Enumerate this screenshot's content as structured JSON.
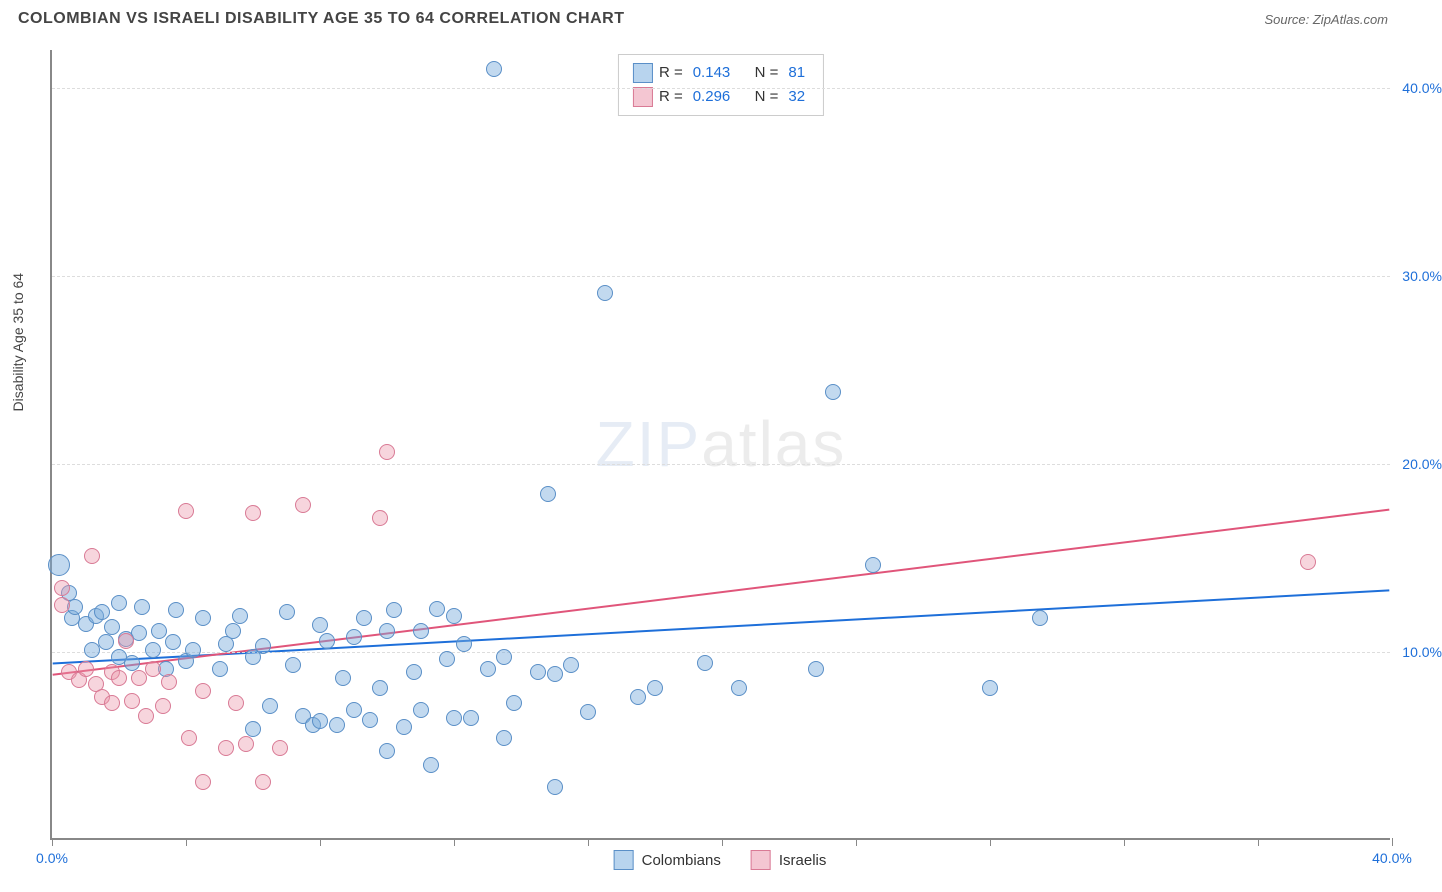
{
  "title": "COLOMBIAN VS ISRAELI DISABILITY AGE 35 TO 64 CORRELATION CHART",
  "source_label": "Source: ZipAtlas.com",
  "ylabel": "Disability Age 35 to 64",
  "watermark_a": "ZIP",
  "watermark_b": "atlas",
  "chart": {
    "type": "scatter",
    "background_color": "#ffffff",
    "grid_color": "#dddddd",
    "grid_dash": "4,4",
    "xlim": [
      0,
      40
    ],
    "ylim": [
      0,
      42
    ],
    "xtick_positions": [
      0,
      4,
      8,
      12,
      16,
      20,
      24,
      28,
      32,
      36,
      40
    ],
    "xtick_labels": {
      "0": "0.0%",
      "40": "40.0%"
    },
    "ytick_positions": [
      10,
      20,
      30,
      40
    ],
    "ytick_labels": [
      "10.0%",
      "20.0%",
      "30.0%",
      "40.0%"
    ],
    "point_radius": 8,
    "point_border_width": 1.5,
    "trend_line_width": 2
  },
  "series": [
    {
      "name": "Colombians",
      "fill_color": "rgba(120,170,220,0.45)",
      "stroke_color": "#5a8fc7",
      "swatch_fill": "#b8d4ee",
      "trend_color": "#1e6fd9",
      "trend": {
        "x1": 0,
        "y1": 9.3,
        "x2": 40,
        "y2": 13.2
      },
      "R_label": "R =",
      "R": "0.143",
      "N_label": "N =",
      "N": "81",
      "points": [
        {
          "x": 0.2,
          "y": 14.5,
          "r": 11
        },
        {
          "x": 0.5,
          "y": 13.0
        },
        {
          "x": 0.6,
          "y": 11.7
        },
        {
          "x": 0.7,
          "y": 12.3
        },
        {
          "x": 1.0,
          "y": 11.4
        },
        {
          "x": 1.2,
          "y": 10.0
        },
        {
          "x": 1.3,
          "y": 11.8
        },
        {
          "x": 1.5,
          "y": 12.0
        },
        {
          "x": 1.6,
          "y": 10.4
        },
        {
          "x": 1.8,
          "y": 11.2
        },
        {
          "x": 2.0,
          "y": 9.6
        },
        {
          "x": 2.0,
          "y": 12.5
        },
        {
          "x": 2.2,
          "y": 10.6
        },
        {
          "x": 2.4,
          "y": 9.3
        },
        {
          "x": 2.6,
          "y": 10.9
        },
        {
          "x": 2.7,
          "y": 12.3
        },
        {
          "x": 3.0,
          "y": 10.0
        },
        {
          "x": 3.2,
          "y": 11.0
        },
        {
          "x": 3.4,
          "y": 9.0
        },
        {
          "x": 3.6,
          "y": 10.4
        },
        {
          "x": 3.7,
          "y": 12.1
        },
        {
          "x": 4.0,
          "y": 9.4
        },
        {
          "x": 4.2,
          "y": 10.0
        },
        {
          "x": 4.5,
          "y": 11.7
        },
        {
          "x": 5.0,
          "y": 9.0
        },
        {
          "x": 5.2,
          "y": 10.3
        },
        {
          "x": 5.4,
          "y": 11.0
        },
        {
          "x": 5.6,
          "y": 11.8
        },
        {
          "x": 6.0,
          "y": 9.6
        },
        {
          "x": 6.0,
          "y": 5.8
        },
        {
          "x": 6.3,
          "y": 10.2
        },
        {
          "x": 6.5,
          "y": 7.0
        },
        {
          "x": 7.0,
          "y": 12.0
        },
        {
          "x": 7.2,
          "y": 9.2
        },
        {
          "x": 7.5,
          "y": 6.5
        },
        {
          "x": 7.8,
          "y": 6.0
        },
        {
          "x": 8.0,
          "y": 11.3
        },
        {
          "x": 8.0,
          "y": 6.2
        },
        {
          "x": 8.2,
          "y": 10.5
        },
        {
          "x": 8.5,
          "y": 6.0
        },
        {
          "x": 8.7,
          "y": 8.5
        },
        {
          "x": 9.0,
          "y": 6.8
        },
        {
          "x": 9.0,
          "y": 10.7
        },
        {
          "x": 9.3,
          "y": 11.7
        },
        {
          "x": 9.5,
          "y": 6.3
        },
        {
          "x": 9.8,
          "y": 8.0
        },
        {
          "x": 10.0,
          "y": 11.0
        },
        {
          "x": 10.0,
          "y": 4.6
        },
        {
          "x": 10.2,
          "y": 12.1
        },
        {
          "x": 10.5,
          "y": 5.9
        },
        {
          "x": 10.8,
          "y": 8.8
        },
        {
          "x": 11.0,
          "y": 6.8
        },
        {
          "x": 11.0,
          "y": 11.0
        },
        {
          "x": 11.3,
          "y": 3.9
        },
        {
          "x": 11.5,
          "y": 12.2
        },
        {
          "x": 11.8,
          "y": 9.5
        },
        {
          "x": 12.0,
          "y": 6.4
        },
        {
          "x": 12.0,
          "y": 11.8
        },
        {
          "x": 12.3,
          "y": 10.3
        },
        {
          "x": 12.5,
          "y": 6.4
        },
        {
          "x": 13.0,
          "y": 9.0
        },
        {
          "x": 13.2,
          "y": 40.9
        },
        {
          "x": 13.5,
          "y": 9.6
        },
        {
          "x": 13.8,
          "y": 7.2
        },
        {
          "x": 14.5,
          "y": 8.8
        },
        {
          "x": 14.8,
          "y": 18.3
        },
        {
          "x": 15.0,
          "y": 2.7
        },
        {
          "x": 15.0,
          "y": 8.7
        },
        {
          "x": 15.5,
          "y": 9.2
        },
        {
          "x": 16.0,
          "y": 6.7
        },
        {
          "x": 16.5,
          "y": 29.0
        },
        {
          "x": 17.5,
          "y": 7.5
        },
        {
          "x": 18.0,
          "y": 8.0
        },
        {
          "x": 19.5,
          "y": 9.3
        },
        {
          "x": 20.5,
          "y": 8.0
        },
        {
          "x": 22.8,
          "y": 9.0
        },
        {
          "x": 23.3,
          "y": 23.7
        },
        {
          "x": 24.5,
          "y": 14.5
        },
        {
          "x": 28.0,
          "y": 8.0
        },
        {
          "x": 29.5,
          "y": 11.7
        },
        {
          "x": 13.5,
          "y": 5.3
        }
      ]
    },
    {
      "name": "Israelis",
      "fill_color": "rgba(235,150,170,0.40)",
      "stroke_color": "#d97a95",
      "swatch_fill": "#f4c6d2",
      "trend_color": "#e0557a",
      "trend": {
        "x1": 0,
        "y1": 8.7,
        "x2": 40,
        "y2": 17.5
      },
      "R_label": "R =",
      "R": "0.296",
      "N_label": "N =",
      "N": "32",
      "points": [
        {
          "x": 0.3,
          "y": 13.3
        },
        {
          "x": 0.3,
          "y": 12.4
        },
        {
          "x": 0.5,
          "y": 8.8
        },
        {
          "x": 0.8,
          "y": 8.4
        },
        {
          "x": 1.0,
          "y": 9.0
        },
        {
          "x": 1.2,
          "y": 15.0
        },
        {
          "x": 1.3,
          "y": 8.2
        },
        {
          "x": 1.5,
          "y": 7.5
        },
        {
          "x": 1.8,
          "y": 8.8
        },
        {
          "x": 1.8,
          "y": 7.2
        },
        {
          "x": 2.0,
          "y": 8.5
        },
        {
          "x": 2.2,
          "y": 10.5
        },
        {
          "x": 2.4,
          "y": 7.3
        },
        {
          "x": 2.6,
          "y": 8.5
        },
        {
          "x": 2.8,
          "y": 6.5
        },
        {
          "x": 3.0,
          "y": 9.0
        },
        {
          "x": 3.3,
          "y": 7.0
        },
        {
          "x": 3.5,
          "y": 8.3
        },
        {
          "x": 4.0,
          "y": 17.4
        },
        {
          "x": 4.1,
          "y": 5.3
        },
        {
          "x": 4.5,
          "y": 3.0
        },
        {
          "x": 4.5,
          "y": 7.8
        },
        {
          "x": 5.2,
          "y": 4.8
        },
        {
          "x": 5.5,
          "y": 7.2
        },
        {
          "x": 5.8,
          "y": 5.0
        },
        {
          "x": 6.0,
          "y": 17.3
        },
        {
          "x": 6.3,
          "y": 3.0
        },
        {
          "x": 6.8,
          "y": 4.8
        },
        {
          "x": 7.5,
          "y": 17.7
        },
        {
          "x": 9.8,
          "y": 17.0
        },
        {
          "x": 10.0,
          "y": 20.5
        },
        {
          "x": 37.5,
          "y": 14.7
        }
      ]
    }
  ]
}
